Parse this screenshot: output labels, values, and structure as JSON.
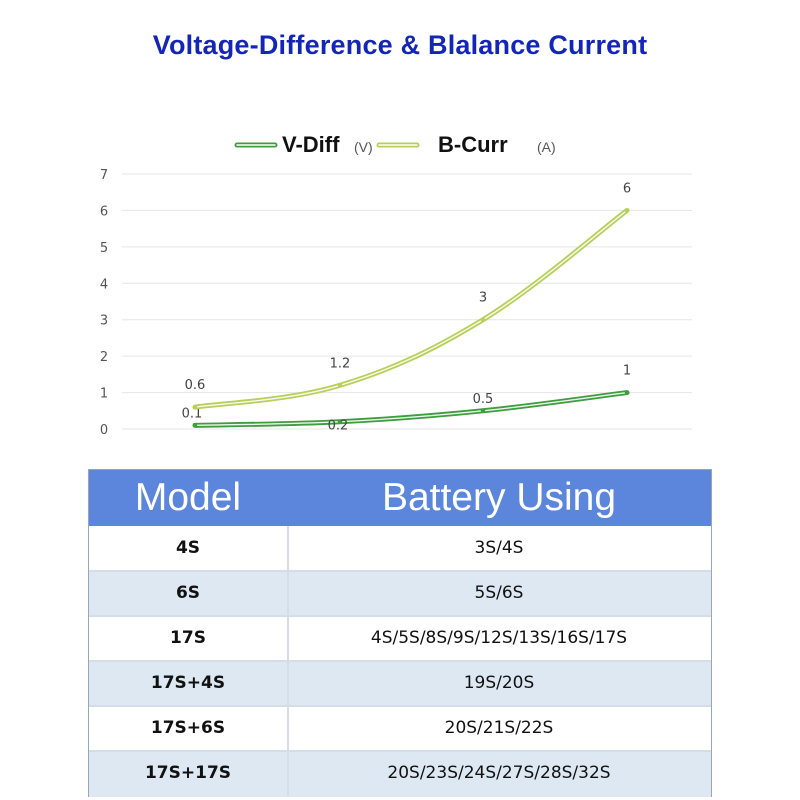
{
  "title": "Voltage-Difference & Blalance Current",
  "colors": {
    "title": "#1426b8",
    "v_diff": "#3f9c3f",
    "b_curr": "#b8cf5a",
    "table_header": "#5b86dc",
    "row_alt": "#dde8f2"
  },
  "chart_data": {
    "type": "line",
    "title": "",
    "xlabel": "",
    "ylabel": "",
    "ylim": [
      0,
      7
    ],
    "yticks": [
      "0",
      "1",
      "2",
      "3",
      "4",
      "5",
      "6",
      "7"
    ],
    "grid": true,
    "legend": "top",
    "x": [
      1,
      2,
      3,
      4
    ],
    "series": [
      {
        "name": "V-Diff",
        "unit": "(V)",
        "values": [
          0.1,
          0.2,
          0.5,
          1
        ],
        "labels": [
          "0.1",
          "0.2",
          "0.5",
          "1"
        ],
        "color": "#3f9c3f"
      },
      {
        "name": "B-Curr",
        "unit": "(A)",
        "values": [
          0.6,
          1.2,
          3,
          6
        ],
        "labels": [
          "0.6",
          "1.2",
          "3",
          "6"
        ],
        "color": "#b8cf5a"
      }
    ]
  },
  "table": {
    "headers": {
      "model": "Model",
      "battery": "Battery Using"
    },
    "rows": [
      {
        "model": "4S",
        "battery": "3S/4S"
      },
      {
        "model": "6S",
        "battery": "5S/6S"
      },
      {
        "model": "17S",
        "battery": "4S/5S/8S/9S/12S/13S/16S/17S"
      },
      {
        "model": "17S+4S",
        "battery": "19S/20S"
      },
      {
        "model": "17S+6S",
        "battery": "20S/21S/22S"
      },
      {
        "model": "17S+17S",
        "battery": "20S/23S/24S/27S/28S/32S"
      }
    ]
  }
}
